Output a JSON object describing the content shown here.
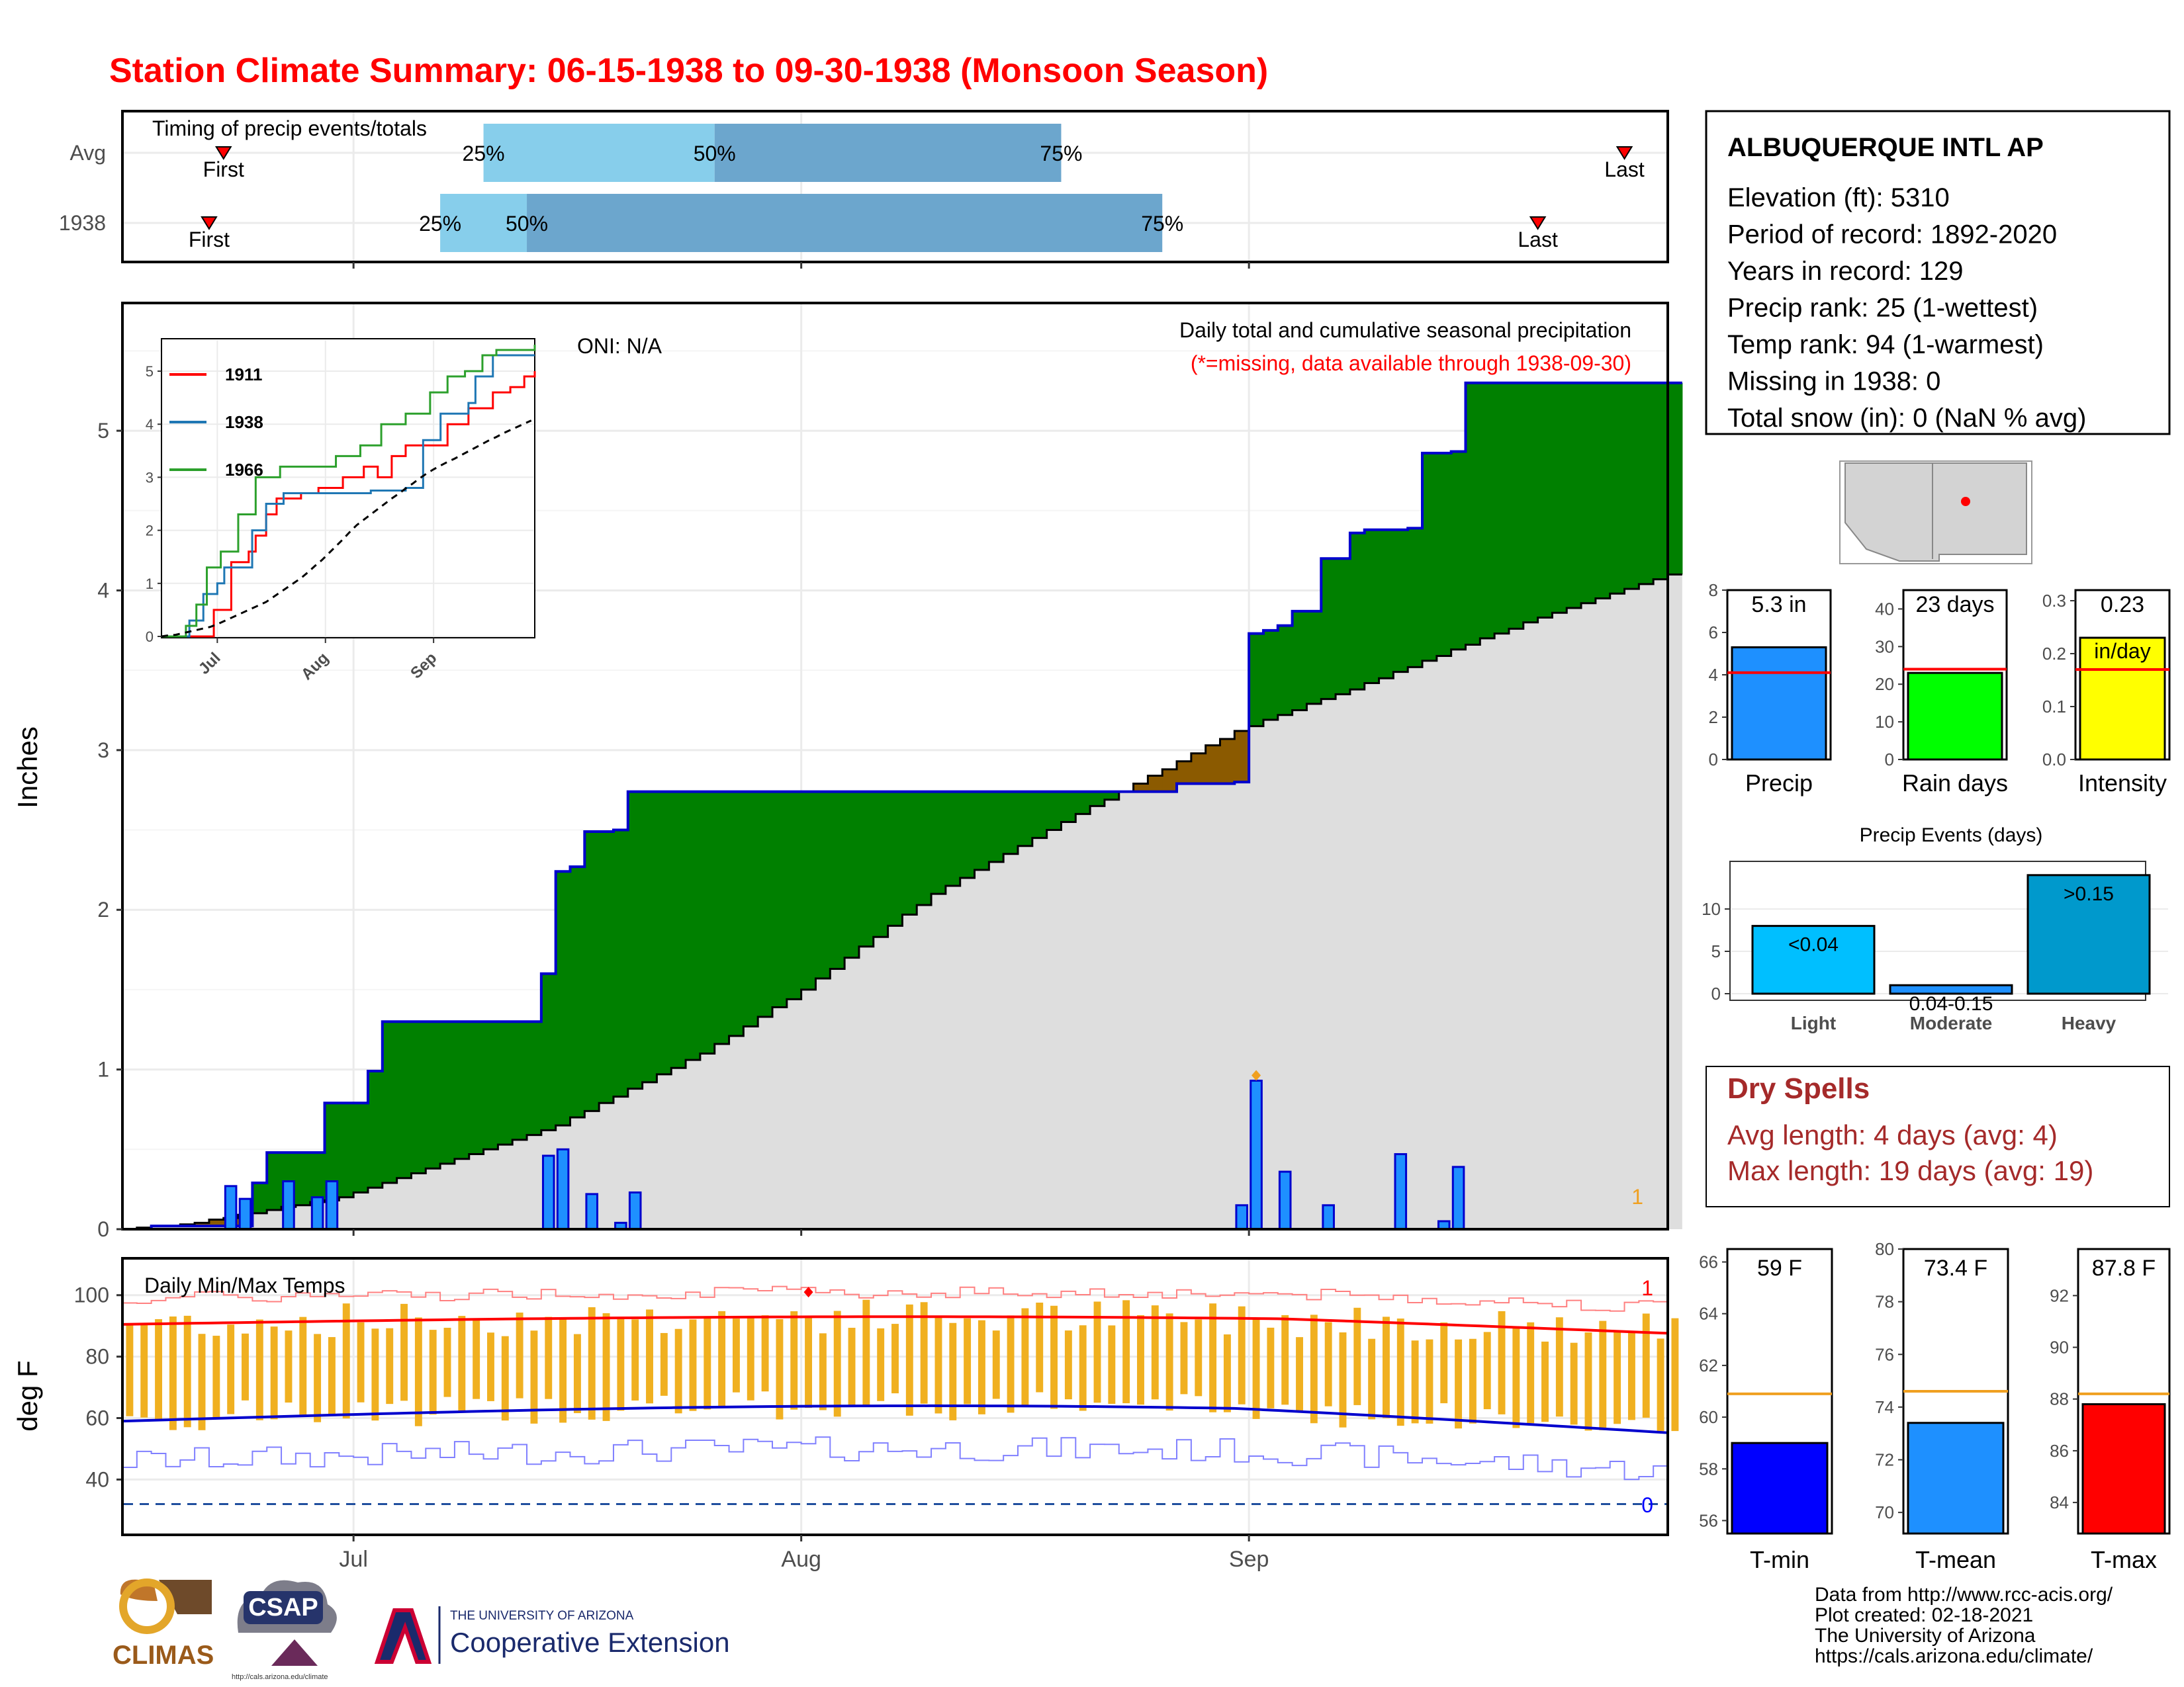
{
  "title": "Station Climate Summary: 06-15-1938 to 09-30-1938 (Monsoon Season)",
  "colors": {
    "title": "#ff0000",
    "green": "#008000",
    "brown": "#8b5a00",
    "gray": "#dedede",
    "blue": "#1e90ff",
    "navy": "#0000cd",
    "orange": "#f0b020",
    "red": "#ff0000",
    "dryspell": "#a52a2a"
  },
  "timing": {
    "label": "Timing of precip events/totals",
    "rows": [
      {
        "name": "Avg",
        "first_label": "First",
        "last_label": "Last",
        "p25": "25%",
        "p50": "50%",
        "p75": "75%",
        "first_date": "1938-06-22",
        "last_date": "1938-09-27",
        "d25": "1938-07-10",
        "d50": "1938-07-26",
        "d75": "1938-08-19"
      },
      {
        "name": "1938",
        "first_label": "First",
        "last_label": "Last",
        "p25": "25%",
        "p50": "50%",
        "p75": "75%",
        "first_date": "1938-06-21",
        "last_date": "1938-09-21",
        "d25": "1938-07-07",
        "d50": "1938-07-13",
        "d75": "1938-08-26"
      }
    ]
  },
  "station": {
    "name": "ALBUQUERQUE INTL AP",
    "lines": [
      "Elevation (ft): 5310",
      "Period of record: 1892-2020",
      "Years in record: 129",
      "Precip rank: 25 (1-wettest)",
      "Temp rank: 94 (1-warmest)",
      "Missing in 1938: 0",
      "Total snow (in): 0 (NaN % avg)"
    ]
  },
  "precip_panel": {
    "ylabel": "Inches",
    "oni": "ONI: N/A",
    "subtitle": "Daily total and cumulative seasonal precipitation",
    "missing_note": "(*=missing, data available through 1938-09-30)",
    "corner_count": "1",
    "y_ticks": [
      "0",
      "1",
      "2",
      "3",
      "4",
      "5"
    ]
  },
  "inset": {
    "legend": [
      {
        "name": "1911",
        "color": "#ff0000"
      },
      {
        "name": "1938",
        "color": "#1f77b4"
      },
      {
        "name": "1966",
        "color": "#2ca02c"
      }
    ],
    "y_ticks": [
      "0",
      "1",
      "2",
      "3",
      "4",
      "5"
    ],
    "x_ticks": [
      "Jul",
      "Aug",
      "Sep"
    ]
  },
  "temp_panel": {
    "title": "Daily Min/Max Temps",
    "ylabel": "deg F",
    "y_ticks": [
      "40",
      "60",
      "80",
      "100"
    ],
    "count_top": "1",
    "count_bottom": "0"
  },
  "x_ticks": [
    "Jul",
    "Aug",
    "Sep"
  ],
  "summary_bars": [
    {
      "label": "Precip",
      "value_text": "5.3 in",
      "value": 5.3,
      "avg": 4.1,
      "ymax": 8,
      "ticks": [
        "0",
        "2",
        "4",
        "6",
        "8"
      ],
      "color": "#1e90ff"
    },
    {
      "label": "Rain days",
      "value_text": "23 days",
      "value": 23,
      "avg": 24,
      "ymax": 45,
      "ticks": [
        "0",
        "10",
        "20",
        "30",
        "40"
      ],
      "color": "#00ff00"
    },
    {
      "label": "Intensity",
      "value_text": "0.23",
      "value_text2": "in/day",
      "value": 0.23,
      "avg": 0.17,
      "ymax": 0.32,
      "ticks": [
        "0.0",
        "0.1",
        "0.2",
        "0.3"
      ],
      "color": "#ffff00"
    }
  ],
  "precip_events": {
    "title": "Precip Events (days)",
    "categories": [
      "Light",
      "Moderate",
      "Heavy"
    ],
    "values": [
      8,
      1,
      14
    ],
    "labels": [
      "<0.04",
      "0.04-0.15",
      ">0.15"
    ],
    "ticks": [
      "0",
      "5",
      "10"
    ]
  },
  "dry_spells": {
    "title": "Dry Spells",
    "avg_line": "Avg length: 4 days (avg: 4)",
    "max_line": "Max length: 19 days (avg: 19)"
  },
  "temp_bars": [
    {
      "label": "T-min",
      "value_text": "59 F",
      "value": 59,
      "avg": 60.9,
      "ymin": 55.5,
      "ymax": 66.5,
      "ticks": [
        "56",
        "58",
        "60",
        "62",
        "64",
        "66"
      ],
      "color": "#0000ff"
    },
    {
      "label": "T-mean",
      "value_text": "73.4 F",
      "value": 73.4,
      "avg": 74.6,
      "ymin": 69.2,
      "ymax": 80,
      "ticks": [
        "70",
        "72",
        "74",
        "76",
        "78",
        "80"
      ],
      "color": "#1e90ff"
    },
    {
      "label": "T-max",
      "value_text": "87.8 F",
      "value": 87.8,
      "avg": 88.2,
      "ymin": 82.8,
      "ymax": 93.8,
      "ticks": [
        "84",
        "86",
        "88",
        "90",
        "92"
      ],
      "color": "#ff0000"
    }
  ],
  "credits": [
    "Data from http://www.rcc-acis.org/",
    "Plot created: 02-18-2021",
    "The University of Arizona",
    "https://cals.arizona.edu/climate/"
  ],
  "logos": {
    "climas": "CLIMAS",
    "csap": "CSAP",
    "csap_url": "http://cals.arizona.edu/climate",
    "ua_small": "THE UNIVERSITY OF ARIZONA",
    "ua_big": "Cooperative Extension"
  },
  "chart_data": {
    "type": "area",
    "title": "Daily total and cumulative seasonal precipitation",
    "xlabel": "",
    "ylabel": "Inches",
    "x_range": [
      "1938-06-15",
      "1938-09-30"
    ],
    "ylim": [
      0,
      5.8
    ],
    "cumulative_1938": [
      {
        "date": "1938-06-15",
        "value": 0
      },
      {
        "date": "1938-06-17",
        "value": 0.02
      },
      {
        "date": "1938-06-24",
        "value": 0.29
      },
      {
        "date": "1938-06-25",
        "value": 0.48
      },
      {
        "date": "1938-06-28",
        "value": 0.48
      },
      {
        "date": "1938-06-29",
        "value": 0.79
      },
      {
        "date": "1938-07-02",
        "value": 0.99
      },
      {
        "date": "1938-07-03",
        "value": 1.3
      },
      {
        "date": "1938-07-13",
        "value": 1.3
      },
      {
        "date": "1938-07-14",
        "value": 1.6
      },
      {
        "date": "1938-07-15",
        "value": 2.24
      },
      {
        "date": "1938-07-16",
        "value": 2.27
      },
      {
        "date": "1938-07-17",
        "value": 2.49
      },
      {
        "date": "1938-07-19",
        "value": 2.5
      },
      {
        "date": "1938-07-20",
        "value": 2.74
      },
      {
        "date": "1938-08-27",
        "value": 2.79
      },
      {
        "date": "1938-08-31",
        "value": 2.8
      },
      {
        "date": "1938-09-01",
        "value": 3.73
      },
      {
        "date": "1938-09-02",
        "value": 3.75
      },
      {
        "date": "1938-09-03",
        "value": 3.78
      },
      {
        "date": "1938-09-04",
        "value": 3.87
      },
      {
        "date": "1938-09-06",
        "value": 4.2
      },
      {
        "date": "1938-09-08",
        "value": 4.36
      },
      {
        "date": "1938-09-09",
        "value": 4.38
      },
      {
        "date": "1938-09-12",
        "value": 4.39
      },
      {
        "date": "1938-09-13",
        "value": 4.86
      },
      {
        "date": "1938-09-15",
        "value": 4.87
      },
      {
        "date": "1938-09-16",
        "value": 5.3
      },
      {
        "date": "1938-09-30",
        "value": 5.3
      }
    ],
    "average_cumulative": [
      {
        "date": "1938-06-15",
        "value": 0
      },
      {
        "date": "1938-06-20",
        "value": 0.04
      },
      {
        "date": "1938-06-30",
        "value": 0.2
      },
      {
        "date": "1938-07-05",
        "value": 0.35
      },
      {
        "date": "1938-07-15",
        "value": 0.65
      },
      {
        "date": "1938-07-25",
        "value": 1.1
      },
      {
        "date": "1938-08-01",
        "value": 1.5
      },
      {
        "date": "1938-08-10",
        "value": 2.1
      },
      {
        "date": "1938-08-20",
        "value": 2.6
      },
      {
        "date": "1938-08-31",
        "value": 3.12
      },
      {
        "date": "1938-09-10",
        "value": 3.45
      },
      {
        "date": "1938-09-20",
        "value": 3.8
      },
      {
        "date": "1938-09-30",
        "value": 4.1
      }
    ],
    "daily_precip": [
      {
        "date": "1938-06-22",
        "value": 0.27
      },
      {
        "date": "1938-06-23",
        "value": 0.19
      },
      {
        "date": "1938-06-26",
        "value": 0.3
      },
      {
        "date": "1938-06-28",
        "value": 0.2
      },
      {
        "date": "1938-06-29",
        "value": 0.3
      },
      {
        "date": "1938-07-14",
        "value": 0.46
      },
      {
        "date": "1938-07-15",
        "value": 0.5
      },
      {
        "date": "1938-07-17",
        "value": 0.22
      },
      {
        "date": "1938-07-19",
        "value": 0.04
      },
      {
        "date": "1938-07-20",
        "value": 0.23
      },
      {
        "date": "1938-08-31",
        "value": 0.15
      },
      {
        "date": "1938-09-01",
        "value": 0.93
      },
      {
        "date": "1938-09-03",
        "value": 0.36
      },
      {
        "date": "1938-09-06",
        "value": 0.15
      },
      {
        "date": "1938-09-11",
        "value": 0.47
      },
      {
        "date": "1938-09-14",
        "value": 0.05
      },
      {
        "date": "1938-09-15",
        "value": 0.39
      }
    ]
  }
}
